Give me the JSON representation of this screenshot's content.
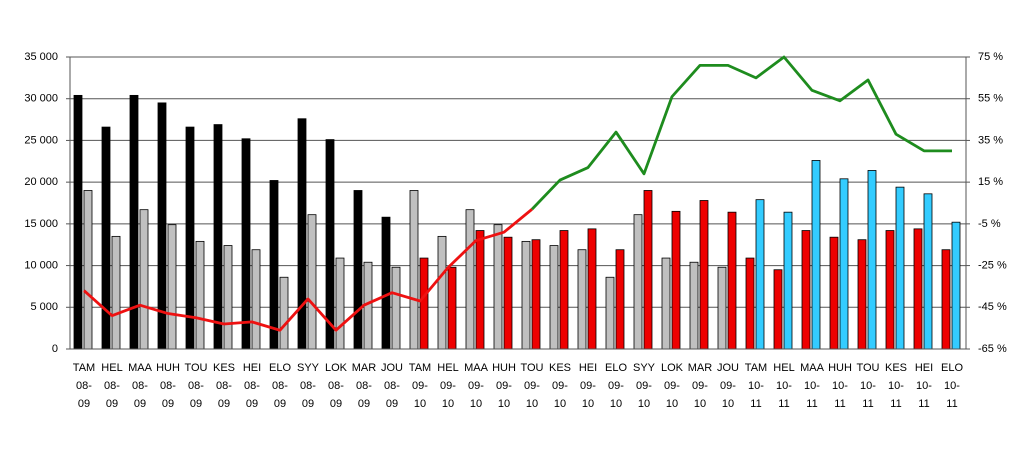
{
  "chart_data": {
    "type": "bar",
    "categories": [
      [
        "TAM",
        "08-",
        "09"
      ],
      [
        "HEL",
        "08-",
        "09"
      ],
      [
        "MAA",
        "08-",
        "09"
      ],
      [
        "HUH",
        "08-",
        "09"
      ],
      [
        "TOU",
        "08-",
        "09"
      ],
      [
        "KES",
        "08-",
        "09"
      ],
      [
        "HEI",
        "08-",
        "09"
      ],
      [
        "ELO",
        "08-",
        "09"
      ],
      [
        "SYY",
        "08-",
        "09"
      ],
      [
        "LOK",
        "08-",
        "09"
      ],
      [
        "MAR",
        "08-",
        "09"
      ],
      [
        "JOU",
        "08-",
        "09"
      ],
      [
        "TAM",
        "09-",
        "10"
      ],
      [
        "HEL",
        "09-",
        "10"
      ],
      [
        "MAA",
        "09-",
        "10"
      ],
      [
        "HUH",
        "09-",
        "10"
      ],
      [
        "TOU",
        "09-",
        "10"
      ],
      [
        "KES",
        "09-",
        "10"
      ],
      [
        "HEI",
        "09-",
        "10"
      ],
      [
        "ELO",
        "09-",
        "10"
      ],
      [
        "SYY",
        "09-",
        "10"
      ],
      [
        "LOK",
        "09-",
        "10"
      ],
      [
        "MAR",
        "09-",
        "10"
      ],
      [
        "JOU",
        "09-",
        "10"
      ],
      [
        "TAM",
        "10-",
        "11"
      ],
      [
        "HEL",
        "10-",
        "11"
      ],
      [
        "MAA",
        "10-",
        "11"
      ],
      [
        "HUH",
        "10-",
        "11"
      ],
      [
        "TOU",
        "10-",
        "11"
      ],
      [
        "KES",
        "10-",
        "11"
      ],
      [
        "HEI",
        "10-",
        "11"
      ],
      [
        "ELO",
        "10-",
        "11"
      ]
    ],
    "series": [
      {
        "type": "bar",
        "color": "#000000",
        "values": [
          30400,
          26600,
          30400,
          29500,
          26600,
          26900,
          25200,
          20200,
          27600,
          25100,
          19000,
          15800,
          null,
          null,
          null,
          null,
          null,
          null,
          null,
          null,
          null,
          null,
          null,
          null,
          null,
          null,
          null,
          null,
          null,
          null,
          null,
          null
        ]
      },
      {
        "type": "bar",
        "color": "#c0c0c0",
        "values": [
          19000,
          13500,
          16700,
          14900,
          12900,
          12400,
          11900,
          8600,
          16100,
          10900,
          10400,
          9800,
          19000,
          13500,
          16700,
          14900,
          12900,
          12400,
          11900,
          8600,
          16100,
          10900,
          10400,
          9800,
          null,
          null,
          null,
          null,
          null,
          null,
          null,
          null
        ]
      },
      {
        "type": "bar",
        "color": "#ee0000",
        "values": [
          null,
          null,
          null,
          null,
          null,
          null,
          null,
          null,
          null,
          null,
          null,
          null,
          10900,
          9800,
          14200,
          13400,
          13100,
          14200,
          14400,
          11900,
          19000,
          16500,
          17800,
          16400,
          10900,
          9500,
          14200,
          13400,
          13100,
          14200,
          14400,
          11900
        ]
      },
      {
        "type": "bar",
        "color": "#33ccff",
        "values": [
          null,
          null,
          null,
          null,
          null,
          null,
          null,
          null,
          null,
          null,
          null,
          null,
          null,
          null,
          null,
          null,
          null,
          null,
          null,
          null,
          null,
          null,
          null,
          null,
          17900,
          16400,
          22600,
          20400,
          21400,
          19400,
          18600,
          15200
        ]
      },
      {
        "type": "line",
        "axis": "y2",
        "color": "#ee1111",
        "values": [
          -37,
          -49,
          -44,
          -48,
          -50,
          -53,
          -52,
          -56,
          -41,
          -56,
          -44,
          -38,
          -42,
          -26,
          -13,
          -9,
          2,
          null,
          null,
          null,
          null,
          null,
          null,
          null,
          null,
          null,
          null,
          null,
          null,
          null,
          null,
          null
        ]
      },
      {
        "type": "line",
        "axis": "y2",
        "color": "#1e8c1e",
        "values": [
          null,
          null,
          null,
          null,
          null,
          null,
          null,
          null,
          null,
          null,
          null,
          null,
          null,
          null,
          null,
          null,
          2,
          16,
          22,
          39,
          19,
          56,
          71,
          71,
          65,
          75,
          59,
          54,
          64,
          38,
          30,
          30
        ]
      }
    ],
    "ylim": [
      0,
      35000
    ],
    "yticks": [
      {
        "value": 0,
        "label": "0"
      },
      {
        "value": 5000,
        "label": "5 000"
      },
      {
        "value": 10000,
        "label": "10 000"
      },
      {
        "value": 15000,
        "label": "15 000"
      },
      {
        "value": 20000,
        "label": "20 000"
      },
      {
        "value": 25000,
        "label": "25 000"
      },
      {
        "value": 30000,
        "label": "30 000"
      },
      {
        "value": 35000,
        "label": "35 000"
      }
    ],
    "y2lim": [
      -65,
      75
    ],
    "y2ticks": [
      {
        "value": -65,
        "label": "-65 %"
      },
      {
        "value": -45,
        "label": "-45 %"
      },
      {
        "value": -25,
        "label": "-25 %"
      },
      {
        "value": -5,
        "label": "-5 %"
      },
      {
        "value": 15,
        "label": "15 %"
      },
      {
        "value": 35,
        "label": "35 %"
      },
      {
        "value": 55,
        "label": "55 %"
      },
      {
        "value": 75,
        "label": "75 %"
      }
    ],
    "grid": true
  }
}
